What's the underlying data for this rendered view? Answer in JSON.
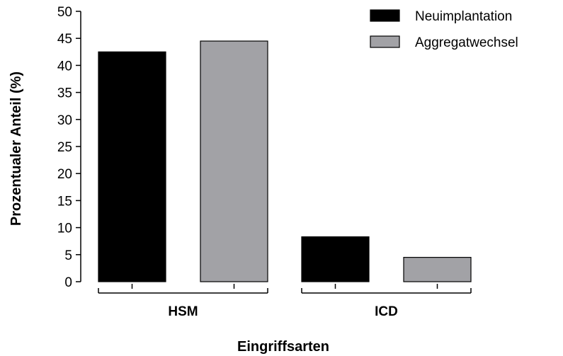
{
  "chart_data": {
    "type": "bar",
    "categories": [
      "HSM",
      "ICD"
    ],
    "series": [
      {
        "name": "Neuimplantation",
        "values": [
          42.5,
          8.3
        ],
        "color": "#000000"
      },
      {
        "name": "Aggregatwechsel",
        "values": [
          44.5,
          4.5
        ],
        "color": "#a2a2a6"
      }
    ],
    "xlabel": "Eingriffsarten",
    "ylabel": "Prozentualer Anteil (%)",
    "ylim": [
      0,
      50
    ],
    "yticks": [
      "0",
      "5",
      "10",
      "15",
      "20",
      "25",
      "30",
      "35",
      "40",
      "45",
      "50"
    ],
    "grid": false,
    "legend_position": "top-right"
  }
}
